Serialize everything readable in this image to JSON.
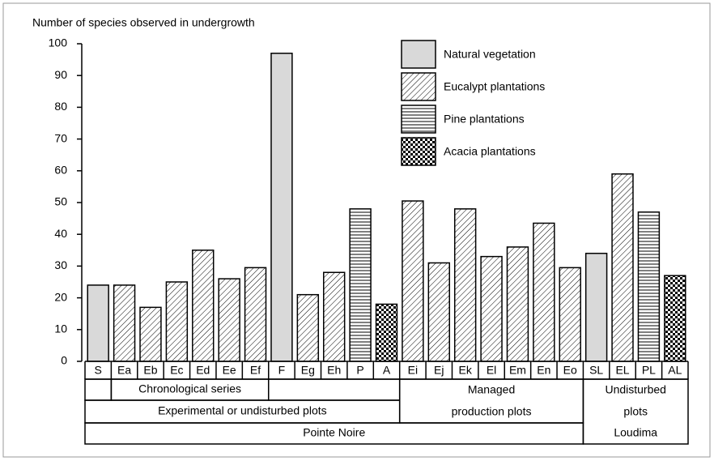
{
  "chart_data": {
    "type": "bar",
    "y_axis_label": "Number of species observed in undergrowth",
    "categories": [
      "S",
      "Ea",
      "Eb",
      "Ec",
      "Ed",
      "Ee",
      "Ef",
      "F",
      "Eg",
      "Eh",
      "P",
      "A",
      "Ei",
      "Ej",
      "Ek",
      "El",
      "Em",
      "En",
      "Eo",
      "SL",
      "EL",
      "PL",
      "AL"
    ],
    "series": [
      {
        "name": "Natural vegetation",
        "pattern": "solid",
        "color": "#d9d9d9",
        "values": [
          24,
          null,
          null,
          null,
          null,
          null,
          null,
          97,
          null,
          null,
          null,
          null,
          null,
          null,
          null,
          null,
          null,
          null,
          null,
          34,
          null,
          null,
          null
        ]
      },
      {
        "name": "Eucalypt plantations",
        "pattern": "diagonal",
        "color": "#000000",
        "values": [
          null,
          24,
          17,
          25,
          35,
          26,
          29.5,
          null,
          21,
          28,
          null,
          null,
          50.5,
          31,
          48,
          33,
          36,
          43.5,
          29.5,
          null,
          59,
          null,
          null
        ]
      },
      {
        "name": "Pine plantations",
        "pattern": "horizontal",
        "color": "#000000",
        "values": [
          null,
          null,
          null,
          null,
          null,
          null,
          null,
          null,
          null,
          null,
          48,
          null,
          null,
          null,
          null,
          null,
          null,
          null,
          null,
          null,
          null,
          47,
          null
        ]
      },
      {
        "name": "Acacia plantations",
        "pattern": "checker",
        "color": "#000000",
        "values": [
          null,
          null,
          null,
          null,
          null,
          null,
          null,
          null,
          null,
          null,
          null,
          18,
          null,
          null,
          null,
          null,
          null,
          null,
          null,
          null,
          null,
          null,
          27
        ]
      }
    ],
    "groups": [
      {
        "label": [
          "Chronological  series"
        ]
      },
      {
        "label": [
          "Managed",
          "production plots"
        ]
      },
      {
        "label": [
          "Undisturbed",
          "plots",
          "Loudima"
        ]
      },
      {
        "label": [
          "Experimental or undisturbed plots"
        ]
      },
      {
        "label": [
          "Pointe Noire"
        ]
      }
    ],
    "ylim": [
      0,
      100
    ],
    "yticks": [
      0,
      10,
      20,
      30,
      40,
      50,
      60,
      70,
      80,
      90,
      100
    ],
    "legend": "top-right"
  }
}
